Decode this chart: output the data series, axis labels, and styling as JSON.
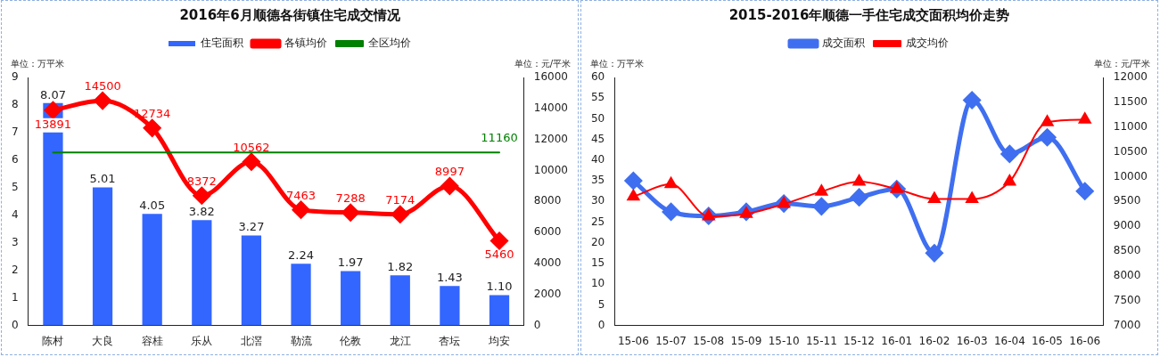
{
  "chart_data": [
    {
      "type": "bar",
      "title": "2016年6月顺德各街镇住宅成交情况",
      "ylabel": "单位：万平米",
      "y2label": "单位：元/平米",
      "legend": "top",
      "grid": false,
      "categories": [
        "陈村",
        "大良",
        "容桂",
        "乐从",
        "北滘",
        "勒流",
        "伦教",
        "龙江",
        "杏坛",
        "均安"
      ],
      "ylim": [
        0,
        9
      ],
      "yticks": [
        0,
        1,
        2,
        3,
        4,
        5,
        6,
        7,
        8,
        9
      ],
      "y2lim": [
        0,
        16000
      ],
      "y2ticks": [
        0,
        2000,
        4000,
        6000,
        8000,
        10000,
        12000,
        14000,
        16000
      ],
      "series": [
        {
          "name": "住宅面积",
          "type": "bar",
          "color": "#3366ff",
          "values": [
            8.07,
            5.01,
            4.05,
            3.82,
            3.27,
            2.24,
            1.97,
            1.82,
            1.43,
            1.1
          ],
          "value_labels": [
            "8.07",
            "5.01",
            "4.05",
            "3.82",
            "3.27",
            "2.24",
            "1.97",
            "1.82",
            "1.43",
            "1.10"
          ]
        },
        {
          "name": "各镇均价",
          "type": "line",
          "axis": "y2",
          "marker": "diamond",
          "color": "#ff0000",
          "values": [
            13891,
            14500,
            12734,
            8372,
            10562,
            7463,
            7288,
            7174,
            8997,
            5460
          ],
          "value_labels": [
            "13891",
            "14500",
            "12734",
            "8372",
            "10562",
            "7463",
            "7288",
            "7174",
            "8997",
            "5460"
          ]
        },
        {
          "name": "全区均价",
          "type": "line",
          "axis": "y2",
          "marker": "none",
          "color": "#008000",
          "values": [
            11160,
            11160,
            11160,
            11160,
            11160,
            11160,
            11160,
            11160,
            11160,
            11160
          ],
          "value_labels": [
            null,
            null,
            null,
            null,
            null,
            null,
            null,
            null,
            null,
            "11160"
          ]
        }
      ]
    },
    {
      "type": "line",
      "title": "2015-2016年顺德一手住宅成交面积均价走势",
      "ylabel": "单位：万平米",
      "y2label": "单位：元/平米",
      "legend": "top",
      "grid": false,
      "categories": [
        "15-06",
        "15-07",
        "15-08",
        "15-09",
        "15-10",
        "15-11",
        "15-12",
        "16-01",
        "16-02",
        "16-03",
        "16-04",
        "16-05",
        "16-06"
      ],
      "ylim": [
        0,
        60
      ],
      "yticks": [
        0,
        5,
        10,
        15,
        20,
        25,
        30,
        35,
        40,
        45,
        50,
        55,
        60
      ],
      "y2lim": [
        7000,
        12000
      ],
      "y2ticks": [
        7000,
        7500,
        8000,
        8500,
        9000,
        9500,
        10000,
        10500,
        11000,
        11500,
        12000
      ],
      "series": [
        {
          "name": "成交面积",
          "marker": "diamond",
          "color": "#3f6ff0",
          "values": [
            35,
            27.5,
            26.5,
            27.5,
            29.5,
            28.8,
            31,
            33,
            17.5,
            54.5,
            41.5,
            45.5,
            32.5
          ]
        },
        {
          "name": "成交均价",
          "axis": "y2",
          "marker": "triangle",
          "color": "#ff0000",
          "values": [
            9600,
            9850,
            9200,
            9250,
            9450,
            9700,
            9900,
            9750,
            9550,
            9550,
            9900,
            11100,
            11150
          ]
        }
      ]
    }
  ]
}
